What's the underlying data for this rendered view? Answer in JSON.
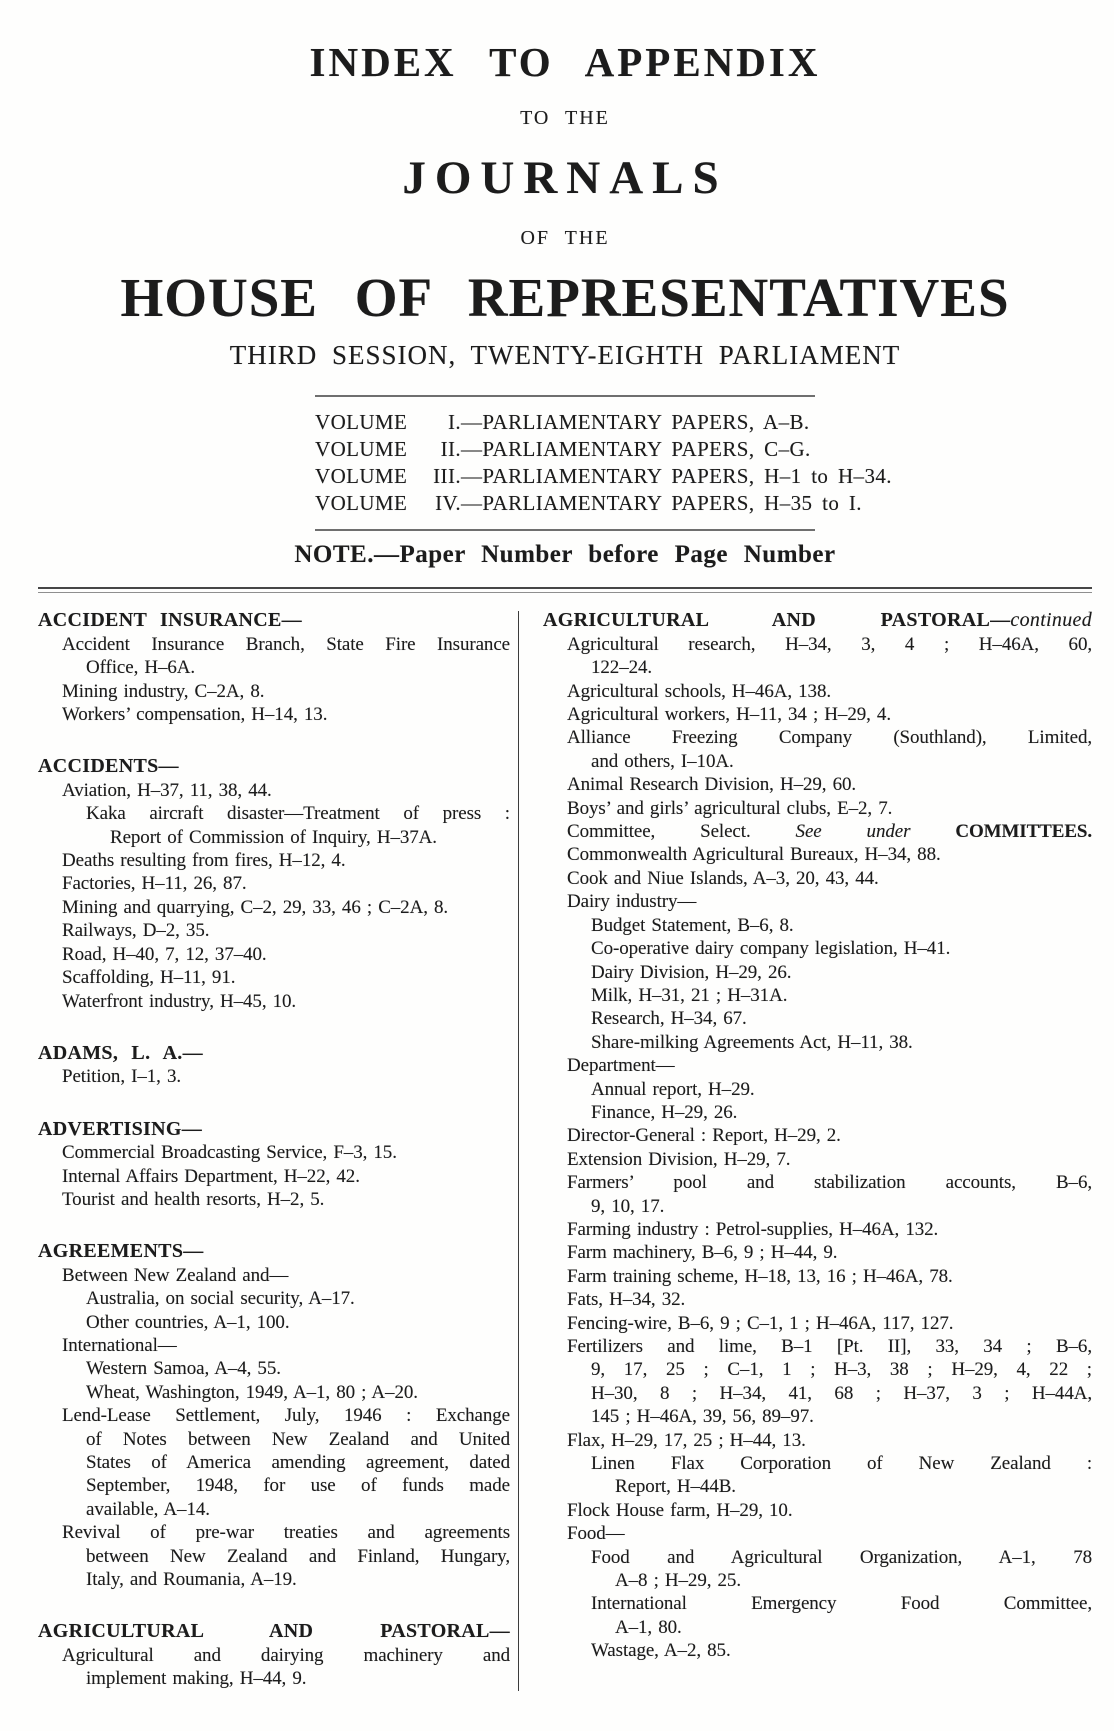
{
  "page": {
    "title_line1": "INDEX TO APPENDIX",
    "conj1": "TO THE",
    "title_line2": "JOURNALS",
    "conj2": "OF THE",
    "title_line3": "HOUSE OF REPRESENTATIVES",
    "session_line": "THIRD SESSION, TWENTY-EIGHTH PARLIAMENT",
    "note": "NOTE.—Paper Number before Page Number",
    "ink_color": "#1c1c1c",
    "paper_color": "#fefefd"
  },
  "volumes": [
    {
      "label": "VOLUME",
      "num": "I.",
      "rest": "—PARLIAMENTARY PAPERS, A–B."
    },
    {
      "label": "VOLUME",
      "num": "II.",
      "rest": "—PARLIAMENTARY PAPERS, C–G."
    },
    {
      "label": "VOLUME",
      "num": "III.",
      "rest": "—PARLIAMENTARY PAPERS, H–1 to H–34."
    },
    {
      "label": "VOLUME",
      "num": "IV.",
      "rest": "—PARLIAMENTARY PAPERS, H–35 to I."
    }
  ],
  "index": {
    "left": [
      {
        "heading": {
          "runs": [
            {
              "t": "ACCIDENT INSURANCE—",
              "s": "b"
            }
          ]
        },
        "items": [
          {
            "i": 1,
            "fill": true,
            "t": "Accident Insurance Branch, State Fire Insurance"
          },
          {
            "i": 2,
            "t": "Office, H–6A."
          },
          {
            "i": 1,
            "t": "Mining industry, C–2A, 8."
          },
          {
            "i": 1,
            "t": "Workers’ compensation, H–14, 13."
          }
        ]
      },
      {
        "heading": {
          "runs": [
            {
              "t": "ACCIDENTS—",
              "s": "b"
            }
          ]
        },
        "items": [
          {
            "i": 1,
            "t": "Aviation, H–37, 11, 38, 44."
          },
          {
            "i": 2,
            "fill": true,
            "t": "Kaka aircraft disaster—Treatment of press :"
          },
          {
            "i": 3,
            "t": "Report of Commission of Inquiry, H–37A."
          },
          {
            "i": 1,
            "t": "Deaths resulting from fires, H–12, 4."
          },
          {
            "i": 1,
            "t": "Factories, H–11, 26, 87."
          },
          {
            "i": 1,
            "t": "Mining and quarrying, C–2, 29, 33, 46 ; C–2A, 8."
          },
          {
            "i": 1,
            "t": "Railways, D–2, 35."
          },
          {
            "i": 1,
            "t": "Road, H–40, 7, 12, 37–40."
          },
          {
            "i": 1,
            "t": "Scaffolding, H–11, 91."
          },
          {
            "i": 1,
            "t": "Waterfront industry, H–45, 10."
          }
        ]
      },
      {
        "heading": {
          "runs": [
            {
              "t": "ADAMS, L. A.—",
              "s": "b"
            }
          ]
        },
        "items": [
          {
            "i": 1,
            "t": "Petition, I–1, 3."
          }
        ]
      },
      {
        "heading": {
          "runs": [
            {
              "t": "ADVERTISING—",
              "s": "b"
            }
          ]
        },
        "items": [
          {
            "i": 1,
            "t": "Commercial Broadcasting Service, F–3, 15."
          },
          {
            "i": 1,
            "t": "Internal Affairs Department, H–22, 42."
          },
          {
            "i": 1,
            "t": "Tourist and health resorts, H–2, 5."
          }
        ]
      },
      {
        "heading": {
          "runs": [
            {
              "t": "AGREEMENTS—",
              "s": "b"
            }
          ]
        },
        "items": [
          {
            "i": 1,
            "t": "Between New Zealand and—"
          },
          {
            "i": 2,
            "t": "Australia, on social security, A–17."
          },
          {
            "i": 2,
            "t": "Other countries, A–1, 100."
          },
          {
            "i": 1,
            "t": "International—"
          },
          {
            "i": 2,
            "t": "Western Samoa, A–4, 55."
          },
          {
            "i": 2,
            "t": "Wheat, Washington, 1949, A–1, 80 ; A–20."
          },
          {
            "i": 1,
            "fill": true,
            "t": "Lend-Lease Settlement, July, 1946 : Exchange"
          },
          {
            "i": 2,
            "fill": true,
            "t": "of Notes between New Zealand and United"
          },
          {
            "i": 2,
            "fill": true,
            "t": "States of America amending agreement, dated"
          },
          {
            "i": 2,
            "fill": true,
            "t": "September, 1948, for use of funds made"
          },
          {
            "i": 2,
            "t": "available, A–14."
          },
          {
            "i": 1,
            "fill": true,
            "t": "Revival of pre-war treaties and agreements"
          },
          {
            "i": 2,
            "fill": true,
            "t": "between New Zealand and Finland, Hungary,"
          },
          {
            "i": 2,
            "t": "Italy, and Roumania, A–19."
          }
        ]
      },
      {
        "heading": {
          "fill": true,
          "runs": [
            {
              "t": "AGRICULTURAL AND PASTORAL—",
              "s": "b"
            }
          ]
        },
        "items": [
          {
            "i": 1,
            "fill": true,
            "t": "Agricultural and dairying machinery and"
          },
          {
            "i": 2,
            "t": "implement making, H–44, 9."
          }
        ]
      }
    ],
    "right": [
      {
        "heading": {
          "fill": true,
          "runs": [
            {
              "t": "AGRICULTURAL AND PASTORAL—",
              "s": "b"
            },
            {
              "t": "continued",
              "s": "i"
            }
          ]
        },
        "items": [
          {
            "i": 1,
            "fill": true,
            "t": "Agricultural research, H–34, 3, 4 ; H–46A, 60,"
          },
          {
            "i": 2,
            "t": "122–24."
          },
          {
            "i": 1,
            "t": "Agricultural schools, H–46A, 138."
          },
          {
            "i": 1,
            "t": "Agricultural workers, H–11, 34 ; H–29, 4."
          },
          {
            "i": 1,
            "fill": true,
            "t": "Alliance Freezing Company (Southland), Limited,"
          },
          {
            "i": 2,
            "t": "and others, I–10A."
          },
          {
            "i": 1,
            "t": "Animal Research Division, H–29, 60."
          },
          {
            "i": 1,
            "t": "Boys’ and girls’ agricultural clubs, E–2, 7."
          },
          {
            "i": 1,
            "fill": true,
            "runs": [
              {
                "t": "Committee, Select. "
              },
              {
                "t": "See under",
                "s": "i"
              },
              {
                "t": " "
              },
              {
                "t": "COMMITTEES.",
                "s": "b"
              }
            ]
          },
          {
            "i": 1,
            "t": "Commonwealth Agricultural Bureaux, H–34, 88."
          },
          {
            "i": 1,
            "t": "Cook and Niue Islands, A–3, 20, 43, 44."
          },
          {
            "i": 1,
            "t": "Dairy industry—"
          },
          {
            "i": 2,
            "t": "Budget Statement, B–6, 8."
          },
          {
            "i": 2,
            "t": "Co-operative dairy company legislation, H–41."
          },
          {
            "i": 2,
            "t": "Dairy Division, H–29, 26."
          },
          {
            "i": 2,
            "t": "Milk, H–31, 21 ; H–31A."
          },
          {
            "i": 2,
            "t": "Research, H–34, 67."
          },
          {
            "i": 2,
            "t": "Share-milking Agreements Act, H–11, 38."
          },
          {
            "i": 1,
            "t": "Department—"
          },
          {
            "i": 2,
            "t": "Annual report, H–29."
          },
          {
            "i": 2,
            "t": "Finance, H–29, 26."
          },
          {
            "i": 1,
            "t": "Director-General : Report, H–29, 2."
          },
          {
            "i": 1,
            "t": "Extension Division, H–29, 7."
          },
          {
            "i": 1,
            "fill": true,
            "t": "Farmers’ pool and stabilization accounts, B–6,"
          },
          {
            "i": 2,
            "t": "9, 10, 17."
          },
          {
            "i": 1,
            "t": "Farming industry : Petrol-supplies, H–46A, 132."
          },
          {
            "i": 1,
            "t": "Farm machinery, B–6, 9 ; H–44, 9."
          },
          {
            "i": 1,
            "t": "Farm training scheme, H–18, 13, 16 ; H–46A, 78."
          },
          {
            "i": 1,
            "t": "Fats, H–34, 32."
          },
          {
            "i": 1,
            "t": "Fencing-wire, B–6, 9 ; C–1, 1 ; H–46A, 117, 127."
          },
          {
            "i": 1,
            "fill": true,
            "t": "Fertilizers and lime, B–1 [Pt. II], 33, 34 ; B–6,"
          },
          {
            "i": 2,
            "fill": true,
            "t": "9, 17, 25 ; C–1, 1 ; H–3, 38 ; H–29, 4, 22 ;"
          },
          {
            "i": 2,
            "fill": true,
            "t": "H–30, 8 ; H–34, 41, 68 ; H–37, 3 ; H–44A,"
          },
          {
            "i": 2,
            "t": "145 ; H–46A, 39, 56, 89–97."
          },
          {
            "i": 1,
            "t": "Flax, H–29, 17, 25 ; H–44, 13."
          },
          {
            "i": 2,
            "fill": true,
            "t": "Linen Flax Corporation of New Zealand :"
          },
          {
            "i": 3,
            "t": "Report, H–44B."
          },
          {
            "i": 1,
            "t": "Flock House farm, H–29, 10."
          },
          {
            "i": 1,
            "t": "Food—"
          },
          {
            "i": 2,
            "fill": true,
            "t": "Food and Agricultural Organization, A–1, 78"
          },
          {
            "i": 3,
            "t": "A–8 ; H–29, 25."
          },
          {
            "i": 2,
            "fill": true,
            "t": "International Emergency Food Committee,"
          },
          {
            "i": 3,
            "t": "A–1, 80."
          },
          {
            "i": 2,
            "t": "Wastage, A–2, 85."
          }
        ]
      }
    ]
  }
}
